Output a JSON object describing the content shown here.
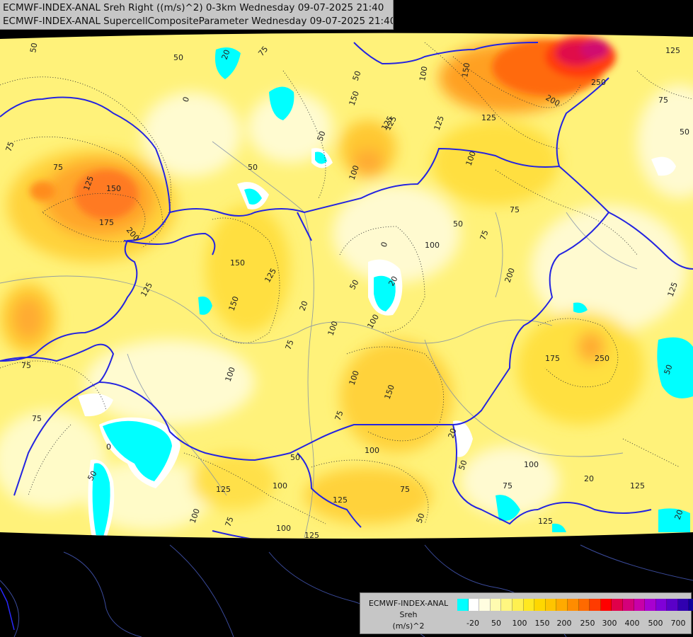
{
  "header": {
    "line1": "ECMWF-INDEX-ANAL Sreh Right ((m/s)^2) 0-3km Wednesday 09-07-2025 21:40",
    "line2": "ECMWF-INDEX-ANAL SupercellCompositeParameter Wednesday 09-07-2025 21:40"
  },
  "legend": {
    "model": "ECMWF-INDEX-ANAL",
    "parameter": "Sreh",
    "units": "(m/s)^2",
    "colors": [
      "#00ffff",
      "#ffffff",
      "#fffde0",
      "#fffbb0",
      "#fff680",
      "#fff050",
      "#ffe820",
      "#ffd700",
      "#ffc400",
      "#ffaa00",
      "#ff8c00",
      "#ff6a00",
      "#ff3b00",
      "#ff0000",
      "#e0004a",
      "#d4007a",
      "#c800a8",
      "#a800d0",
      "#8000d8",
      "#5a00c8",
      "#3000b0",
      "#10009a"
    ],
    "ticks": [
      {
        "label": "-20",
        "value": -20
      },
      {
        "label": "50",
        "value": 50
      },
      {
        "label": "100",
        "value": 100
      },
      {
        "label": "150",
        "value": 150
      },
      {
        "label": "200",
        "value": 200
      },
      {
        "label": "250",
        "value": 250
      },
      {
        "label": "300",
        "value": 300
      },
      {
        "label": "400",
        "value": 400
      },
      {
        "label": "500",
        "value": 500
      },
      {
        "label": "700",
        "value": 700
      }
    ]
  },
  "contour_labels": [
    "50",
    "75",
    "0",
    "20",
    "50",
    "75",
    "50",
    "100",
    "150",
    "125",
    "200",
    "250",
    "125",
    "75",
    "50",
    "75",
    "125",
    "150",
    "175",
    "200",
    "125",
    "125",
    "50",
    "100",
    "50",
    "100",
    "150",
    "125",
    "75",
    "50",
    "0",
    "20",
    "100",
    "75",
    "150",
    "125",
    "150",
    "125",
    "20",
    "100",
    "50",
    "100",
    "75",
    "75",
    "100",
    "150",
    "200",
    "175",
    "250",
    "125",
    "50",
    "75",
    "20",
    "50",
    "100",
    "75",
    "125",
    "20",
    "125",
    "20",
    "0",
    "50",
    "75",
    "100",
    "125",
    "75",
    "100",
    "50",
    "125",
    "100",
    "100",
    "75",
    "50",
    "125",
    "100"
  ]
}
